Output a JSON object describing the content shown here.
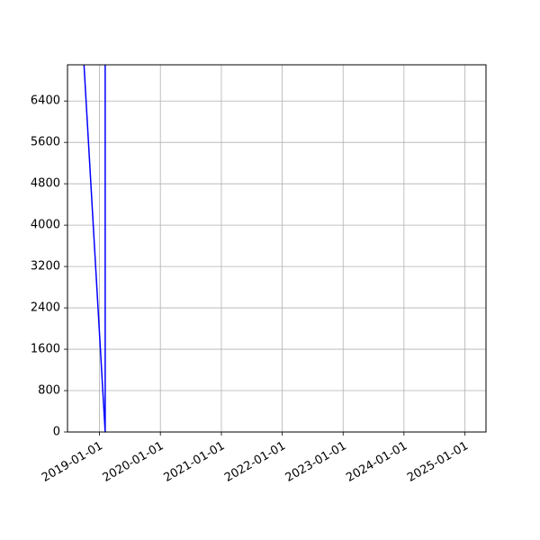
{
  "chart_data": {
    "type": "line",
    "title": "",
    "xlabel": "",
    "ylabel": "",
    "x_ticks": [
      "2019-01-01",
      "2020-01-01",
      "2021-01-01",
      "2022-01-01",
      "2023-01-01",
      "2024-01-01",
      "2025-01-01"
    ],
    "y_ticks": [
      0,
      800,
      1600,
      2400,
      3200,
      4000,
      4800,
      5600,
      6400
    ],
    "xlim": [
      "2018-06-23",
      "2025-05-07"
    ],
    "ylim": [
      0,
      7100
    ],
    "grid": true,
    "series": [
      {
        "color": "#0000ff",
        "points": [
          {
            "x": "2018-09-30",
            "y": 7100
          },
          {
            "x": "2019-02-04",
            "y": 0
          },
          {
            "x": "2019-02-04",
            "y": 7100
          }
        ]
      }
    ]
  }
}
